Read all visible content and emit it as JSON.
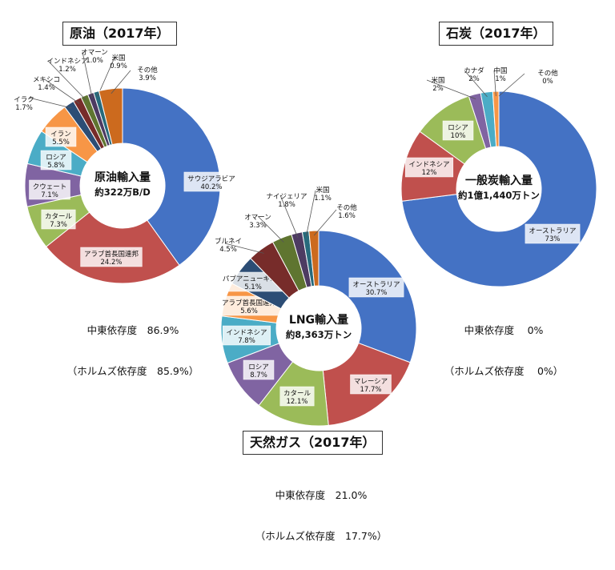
{
  "panels": {
    "oil": {
      "title": "原油（2017年）",
      "dependency_1": "中東依存度　86.9%",
      "dependency_2": "（ホルムズ依存度　85.9%）"
    },
    "coal": {
      "title": "石炭（2017年）",
      "dependency_1": "中東依存度　 0%",
      "dependency_2": "（ホルムズ依存度　 0%）"
    },
    "gas": {
      "title": "天然ガス（2017年）",
      "dependency_1": "中東依存度　21.0%",
      "dependency_2": "（ホルムズ依存度　17.7%）"
    }
  },
  "chart_data": [
    {
      "id": "oil",
      "type": "pie",
      "title": "原油（2017年）",
      "center_label": [
        "原油輸入量",
        "約322万B/D"
      ],
      "unit": "%",
      "slices": [
        {
          "label": "サウジアラビア",
          "value": 40.2,
          "display": "40.2%",
          "color": "#4472C4"
        },
        {
          "label": "アラブ首長国連邦",
          "value": 24.2,
          "display": "24.2%",
          "color": "#C0504D"
        },
        {
          "label": "カタール",
          "value": 7.3,
          "display": "7.3%",
          "color": "#9BBB59"
        },
        {
          "label": "クウェート",
          "value": 7.1,
          "display": "7.1%",
          "color": "#8064A2"
        },
        {
          "label": "ロシア",
          "value": 5.8,
          "display": "5.8%",
          "color": "#4BACC6"
        },
        {
          "label": "イラン",
          "value": 5.5,
          "display": "5.5%",
          "color": "#F79646"
        },
        {
          "label": "イラク",
          "value": 1.7,
          "display": "1.7%",
          "color": "#2C4D75"
        },
        {
          "label": "メキシコ",
          "value": 1.4,
          "display": "1.4%",
          "color": "#772C2A"
        },
        {
          "label": "インドネシア",
          "value": 1.2,
          "display": "1.2%",
          "color": "#5F7530"
        },
        {
          "label": "オマーン",
          "value": 1.0,
          "display": "1.0%",
          "color": "#4D3B62"
        },
        {
          "label": "米国",
          "value": 0.9,
          "display": "0.9%",
          "color": "#276A7C"
        },
        {
          "label": "その他",
          "value": 3.9,
          "display": "3.9%",
          "color": "#CC6A1E"
        }
      ]
    },
    {
      "id": "gas",
      "type": "pie",
      "title": "天然ガス（2017年）",
      "center_label": [
        "LNG輸入量",
        "約8,363万トン"
      ],
      "unit": "%",
      "slices": [
        {
          "label": "オーストラリア",
          "value": 30.7,
          "display": "30.7%",
          "color": "#4472C4"
        },
        {
          "label": "マレーシア",
          "value": 17.7,
          "display": "17.7%",
          "color": "#C0504D"
        },
        {
          "label": "カタール",
          "value": 12.1,
          "display": "12.1%",
          "color": "#9BBB59"
        },
        {
          "label": "ロシア",
          "value": 8.7,
          "display": "8.7%",
          "color": "#8064A2"
        },
        {
          "label": "インドネシア",
          "value": 7.8,
          "display": "7.8%",
          "color": "#4BACC6"
        },
        {
          "label": "アラブ首長国連邦",
          "value": 5.6,
          "display": "5.6%",
          "color": "#F79646"
        },
        {
          "label": "パプアニューギニア",
          "value": 5.1,
          "display": "5.1%",
          "color": "#2C4D75"
        },
        {
          "label": "ブルネイ",
          "value": 4.5,
          "display": "4.5%",
          "color": "#772C2A"
        },
        {
          "label": "オマーン",
          "value": 3.3,
          "display": "3.3%",
          "color": "#5F7530"
        },
        {
          "label": "ナイジェリア",
          "value": 1.8,
          "display": "1.8%",
          "color": "#4D3B62"
        },
        {
          "label": "米国",
          "value": 1.1,
          "display": "1.1%",
          "color": "#276A7C"
        },
        {
          "label": "その他",
          "value": 1.6,
          "display": "1.6%",
          "color": "#CC6A1E"
        }
      ]
    },
    {
      "id": "coal",
      "type": "pie",
      "title": "石炭（2017年）",
      "center_label": [
        "一般炭輸入量",
        "約1億1,440万トン"
      ],
      "unit": "%",
      "slices": [
        {
          "label": "オーストラリア",
          "value": 73,
          "display": "73%",
          "color": "#4472C4"
        },
        {
          "label": "インドネシア",
          "value": 12,
          "display": "12%",
          "color": "#C0504D"
        },
        {
          "label": "ロシア",
          "value": 10,
          "display": "10%",
          "color": "#9BBB59"
        },
        {
          "label": "米国",
          "value": 2,
          "display": "2%",
          "color": "#8064A2"
        },
        {
          "label": "カナダ",
          "value": 2,
          "display": "2%",
          "color": "#4BACC6"
        },
        {
          "label": "中国",
          "value": 1,
          "display": "1%",
          "color": "#F79646"
        },
        {
          "label": "その他",
          "value": 0,
          "display": "0%",
          "color": "#2C4D75"
        }
      ]
    }
  ]
}
